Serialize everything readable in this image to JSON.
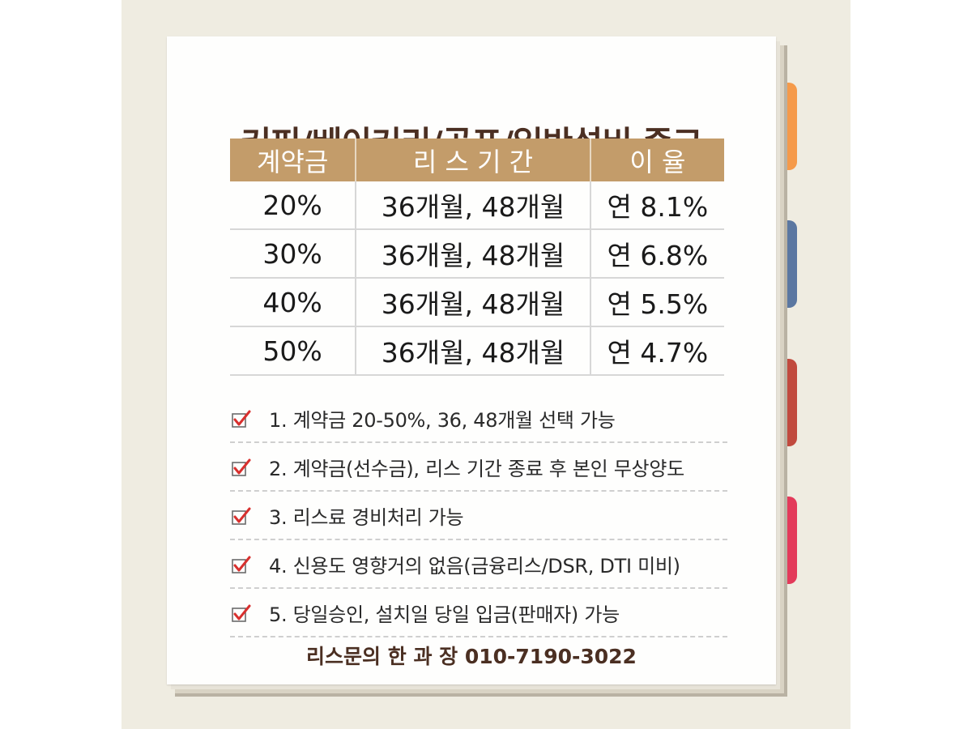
{
  "colors": {
    "background_panel": "#efece1",
    "paper": "#fefefd",
    "title": "#4b2f22",
    "table_header_bg": "#c39c6a",
    "check_red": "#d8302e",
    "tab_orange": "#f59a4a",
    "tab_blue": "#5b77a1",
    "tab_red": "#c14a3e",
    "tab_pink": "#e33a5a"
  },
  "title": "커피/베이커리/골프/일반설비 중고",
  "table": {
    "headers": [
      "계약금",
      "리 스 기 간",
      "이 율"
    ],
    "rows": [
      [
        "20%",
        "36개월, 48개월",
        "연 8.1%"
      ],
      [
        "30%",
        "36개월, 48개월",
        "연 6.8%"
      ],
      [
        "40%",
        "36개월, 48개월",
        "연 5.5%"
      ],
      [
        "50%",
        "36개월, 48개월",
        "연 4.7%"
      ]
    ]
  },
  "notes": [
    {
      "icon": "checkbox-checked-icon",
      "text": "1. 계약금 20-50%, 36, 48개월 선택 가능"
    },
    {
      "icon": "checkbox-checked-icon",
      "text": "2. 계약금(선수금), 리스 기간 종료 후 본인 무상양도"
    },
    {
      "icon": "checkbox-checked-icon",
      "text": "3. 리스료 경비처리 가능"
    },
    {
      "icon": "checkbox-checked-icon",
      "text": "4. 신용도 영향거의 없음(금융리스/DSR, DTI 미비)"
    },
    {
      "icon": "checkbox-checked-icon",
      "text": "5. 당일승인, 설치일 당일 입금(판매자) 가능"
    }
  ],
  "contact": "리스문의  한 과 장 010-7190-3022"
}
